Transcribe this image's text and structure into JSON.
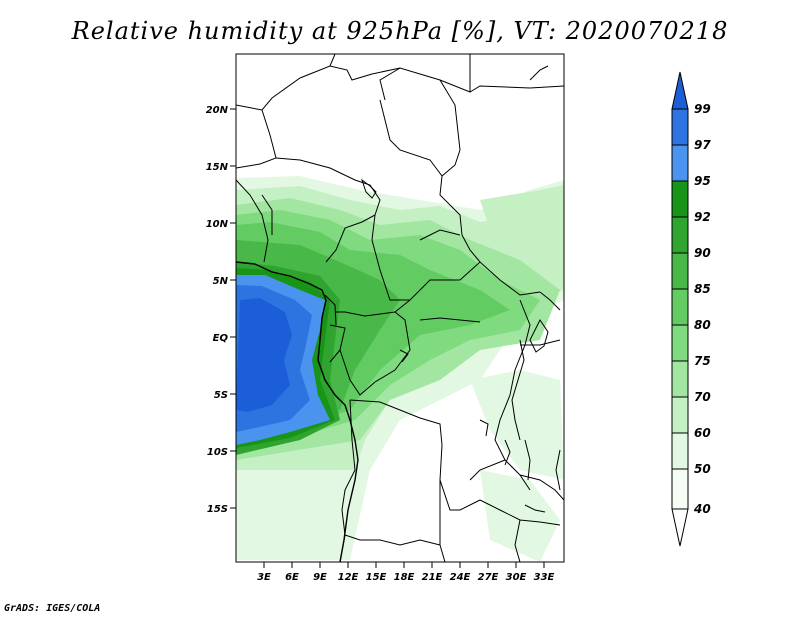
{
  "title": "Relative humidity at 925hPa [%], VT: 2020070218",
  "credit": "GrADS: IGES/COLA",
  "map": {
    "lat_ticks": [
      "20N",
      "15N",
      "10N",
      "5N",
      "EQ",
      "5S",
      "10S",
      "15S"
    ],
    "lon_ticks": [
      "3E",
      "6E",
      "9E",
      "12E",
      "15E",
      "18E",
      "21E",
      "24E",
      "27E",
      "30E",
      "33E"
    ]
  },
  "legend": {
    "levels": [
      "99",
      "97",
      "95",
      "92",
      "90",
      "85",
      "80",
      "75",
      "70",
      "60",
      "50",
      "40"
    ],
    "colors": [
      "#1c5ed8",
      "#2e74e0",
      "#4a93ee",
      "#189418",
      "#2fa42f",
      "#48b848",
      "#62cc62",
      "#80da80",
      "#a2e6a2",
      "#c4f0c4",
      "#e2f8e2",
      "#f5fdf5",
      "#ffffff"
    ]
  }
}
